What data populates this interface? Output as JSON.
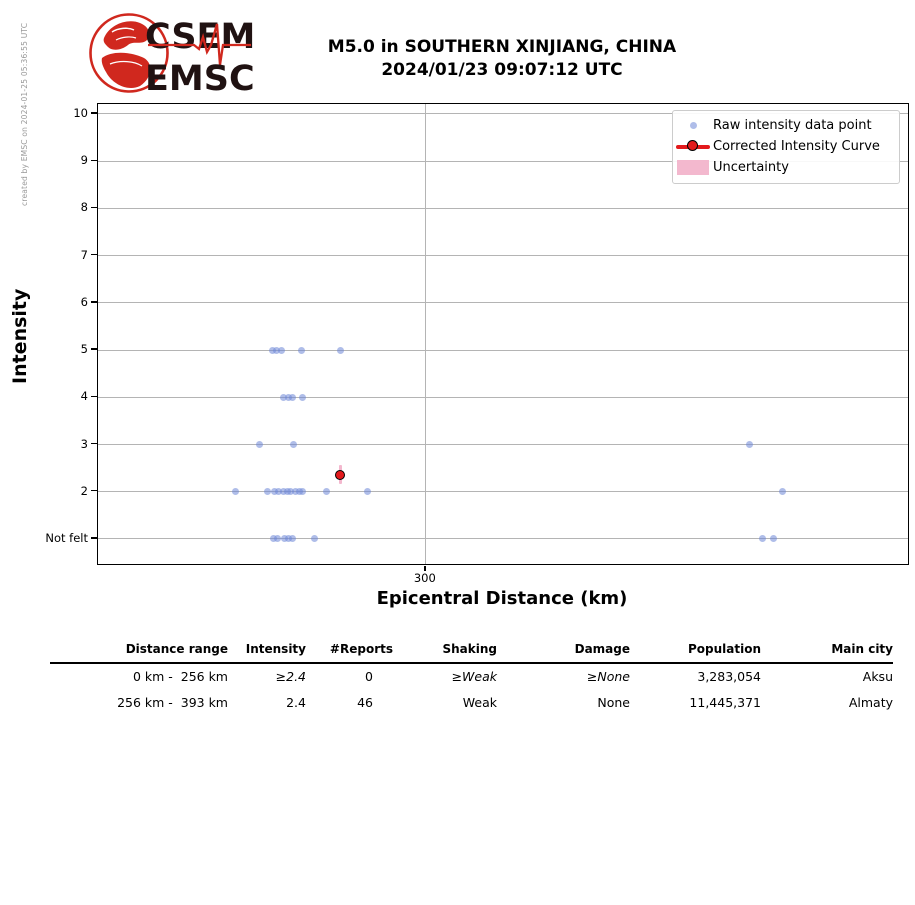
{
  "meta": {
    "created_by": "created by EMSC on 2024-01-25 05:36:55 UTC"
  },
  "logo": {
    "line1": "CSEM",
    "line2": "EMSC",
    "red": "#d0281e",
    "text_color": "#201212"
  },
  "title": {
    "line1": "M5.0 in SOUTHERN XINJIANG, CHINA",
    "line2": "2024/01/23 09:07:12 UTC"
  },
  "colors": {
    "raw_point": "rgba(110,135,215,0.55)",
    "corrected_red": "#e31a1c",
    "uncertainty_pink": "#f3b8ce",
    "grid": "#b4b4b4"
  },
  "chart_data": {
    "type": "scatter",
    "title": "M5.0 in SOUTHERN XINJIANG, CHINA 2024/01/23 09:07:12 UTC",
    "xlabel": "Epicentral Distance (km)",
    "ylabel": "Intensity",
    "xlim": [
      232,
      400
    ],
    "ylim": [
      0.47,
      10.21
    ],
    "grid": true,
    "legend_position": "upper right",
    "x_ticks": [
      {
        "value": 300,
        "label": "300"
      }
    ],
    "y_ticks": [
      {
        "value": 10,
        "label": "10"
      },
      {
        "value": 9,
        "label": "9"
      },
      {
        "value": 8,
        "label": "8"
      },
      {
        "value": 7,
        "label": "7"
      },
      {
        "value": 6,
        "label": "6"
      },
      {
        "value": 5,
        "label": "5"
      },
      {
        "value": 4,
        "label": "4"
      },
      {
        "value": 3,
        "label": "3"
      },
      {
        "value": 2,
        "label": "2"
      },
      {
        "value": 1,
        "label": "Not felt"
      }
    ],
    "series": [
      {
        "name": "Raw intensity data point",
        "type": "scatter",
        "color": "rgba(110,135,215,0.55)",
        "points": [
          {
            "d": 268.1,
            "i": 5
          },
          {
            "d": 269.0,
            "i": 5
          },
          {
            "d": 270.0,
            "i": 5
          },
          {
            "d": 274.3,
            "i": 5
          },
          {
            "d": 282.2,
            "i": 5
          },
          {
            "d": 270.4,
            "i": 4
          },
          {
            "d": 271.6,
            "i": 4
          },
          {
            "d": 272.4,
            "i": 4
          },
          {
            "d": 274.5,
            "i": 4
          },
          {
            "d": 265.4,
            "i": 3
          },
          {
            "d": 272.6,
            "i": 3
          },
          {
            "d": 367.2,
            "i": 3
          },
          {
            "d": 260.6,
            "i": 2
          },
          {
            "d": 267.1,
            "i": 2
          },
          {
            "d": 268.7,
            "i": 2
          },
          {
            "d": 269.5,
            "i": 2
          },
          {
            "d": 270.4,
            "i": 2
          },
          {
            "d": 271.2,
            "i": 2
          },
          {
            "d": 272.0,
            "i": 2
          },
          {
            "d": 272.9,
            "i": 2
          },
          {
            "d": 273.7,
            "i": 2
          },
          {
            "d": 274.5,
            "i": 2
          },
          {
            "d": 279.3,
            "i": 2
          },
          {
            "d": 287.8,
            "i": 2
          },
          {
            "d": 373.9,
            "i": 2
          },
          {
            "d": 268.3,
            "i": 1
          },
          {
            "d": 269.3,
            "i": 1
          },
          {
            "d": 270.6,
            "i": 1
          },
          {
            "d": 271.6,
            "i": 1
          },
          {
            "d": 272.4,
            "i": 1
          },
          {
            "d": 277.0,
            "i": 1
          },
          {
            "d": 369.9,
            "i": 1
          },
          {
            "d": 372.2,
            "i": 1
          }
        ]
      },
      {
        "name": "Corrected Intensity Curve",
        "type": "line_marker",
        "color": "#e31a1c",
        "points": [
          {
            "d": 282.2,
            "i": 2.35
          }
        ]
      },
      {
        "name": "Uncertainty",
        "type": "band",
        "color": "#f3b8ce",
        "points": [
          {
            "d": 282.2,
            "i_min": 2.17,
            "i_max": 2.57
          }
        ]
      }
    ]
  },
  "table": {
    "headers": [
      "Distance range",
      "Intensity",
      "#Reports",
      "Shaking",
      "Damage",
      "Population",
      "Main city"
    ],
    "rows": [
      [
        "0 km -  256 km",
        "≥2.4",
        "0",
        "≥Weak",
        "≥None",
        "3,283,054",
        "Aksu"
      ],
      [
        "256 km -  393 km",
        "2.4",
        "46",
        "Weak",
        "None",
        "11,445,371",
        "Almaty"
      ]
    ]
  }
}
